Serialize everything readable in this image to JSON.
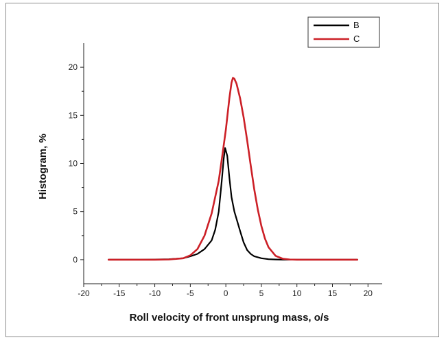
{
  "chart_data": {
    "type": "line",
    "title": "",
    "xlabel": "Roll velocity of front unsprung mass, o/s",
    "ylabel": "Histogram, %",
    "xlim": [
      -20,
      22
    ],
    "ylim": [
      -2.5,
      22.5
    ],
    "xticks": [
      -20,
      -15,
      -10,
      -5,
      0,
      5,
      10,
      15,
      20
    ],
    "yticks": [
      0,
      5,
      10,
      15,
      20
    ],
    "legend_position": "top-right",
    "series": [
      {
        "name": "B",
        "color": "#000000",
        "points": [
          [
            -16.5,
            0
          ],
          [
            -12,
            0
          ],
          [
            -10,
            0.02
          ],
          [
            -8,
            0.05
          ],
          [
            -6,
            0.15
          ],
          [
            -5,
            0.35
          ],
          [
            -4,
            0.6
          ],
          [
            -3,
            1.1
          ],
          [
            -2,
            2
          ],
          [
            -1.5,
            3.1
          ],
          [
            -1,
            5
          ],
          [
            -0.6,
            8
          ],
          [
            -0.3,
            10.5
          ],
          [
            -0.1,
            11.6
          ],
          [
            0.2,
            10.8
          ],
          [
            0.5,
            8.5
          ],
          [
            0.8,
            6.5
          ],
          [
            1.2,
            5
          ],
          [
            1.6,
            4
          ],
          [
            2,
            3
          ],
          [
            2.5,
            1.8
          ],
          [
            3,
            1
          ],
          [
            3.5,
            0.6
          ],
          [
            4,
            0.35
          ],
          [
            5,
            0.15
          ],
          [
            6,
            0.05
          ],
          [
            7,
            0.02
          ],
          [
            8,
            0
          ],
          [
            12,
            0
          ],
          [
            18.5,
            0
          ]
        ]
      },
      {
        "name": "C",
        "color": "#cc2027",
        "points": [
          [
            -16.5,
            0
          ],
          [
            -10,
            0
          ],
          [
            -8,
            0.02
          ],
          [
            -6,
            0.15
          ],
          [
            -5,
            0.45
          ],
          [
            -4,
            1.1
          ],
          [
            -3,
            2.5
          ],
          [
            -2,
            4.8
          ],
          [
            -1,
            8.2
          ],
          [
            -0.5,
            10.8
          ],
          [
            0,
            13.5
          ],
          [
            0.5,
            16.8
          ],
          [
            0.8,
            18.4
          ],
          [
            1,
            18.9
          ],
          [
            1.2,
            18.8
          ],
          [
            1.5,
            18.3
          ],
          [
            2,
            16.8
          ],
          [
            2.5,
            14.8
          ],
          [
            3,
            12.4
          ],
          [
            3.5,
            9.8
          ],
          [
            4,
            7.3
          ],
          [
            4.5,
            5.2
          ],
          [
            5,
            3.5
          ],
          [
            5.5,
            2.2
          ],
          [
            6,
            1.3
          ],
          [
            7,
            0.4
          ],
          [
            8,
            0.1
          ],
          [
            9,
            0.02
          ],
          [
            10,
            0
          ],
          [
            18.5,
            0
          ]
        ]
      }
    ]
  }
}
